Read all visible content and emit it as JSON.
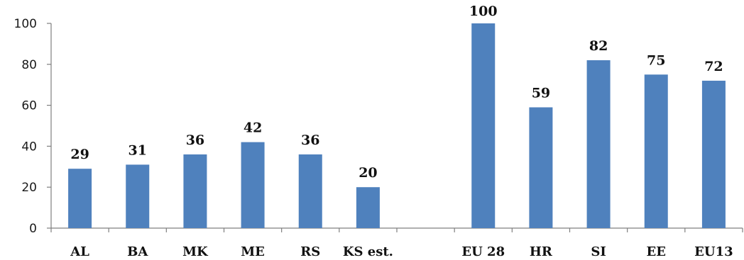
{
  "chart_data": {
    "type": "bar",
    "title": "",
    "xlabel": "",
    "ylabel": "",
    "ylim": [
      0,
      100
    ],
    "yticks": [
      0,
      20,
      40,
      60,
      80,
      100
    ],
    "grid": false,
    "legend": "none",
    "bar_color": "#4f81bd",
    "categories": [
      "AL",
      "BA",
      "MK",
      "ME",
      "RS",
      "KS est.",
      "",
      "EU 28",
      "HR",
      "SI",
      "EE",
      "EU13"
    ],
    "values": [
      29,
      31,
      36,
      42,
      36,
      20,
      null,
      100,
      59,
      82,
      75,
      72
    ],
    "data_labels": [
      "29",
      "31",
      "36",
      "42",
      "36",
      "20",
      "",
      "100",
      "59",
      "82",
      "75",
      "72"
    ]
  }
}
